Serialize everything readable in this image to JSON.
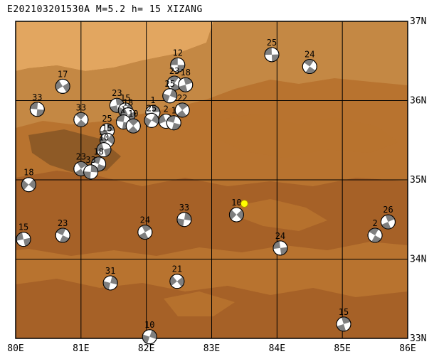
{
  "title": "E202103201530A  M=5.2  h=  15  XIZANG",
  "map": {
    "lon_range": [
      80,
      86
    ],
    "lat_range": [
      33,
      37
    ],
    "x_tick_labels": [
      "80E",
      "81E",
      "82E",
      "83E",
      "84E",
      "85E",
      "86E"
    ],
    "y_tick_labels": [
      "37N",
      "36N",
      "35N",
      "34N",
      "33N"
    ],
    "grid": true,
    "colors": {
      "frame": "#000000",
      "terrain_base": "#b8732f",
      "terrain_low": "#a66127",
      "terrain_mid": "#c48844",
      "terrain_high": "#e2a660",
      "plateau_dark": "#8e5a26",
      "beachball_dark": "#7f7f7f",
      "beachball_light": "#ffffff",
      "event_marker": "#ffff00"
    }
  },
  "event_marker": {
    "lon": 83.5,
    "lat": 34.7
  },
  "mechanisms": [
    {
      "lon": 82.48,
      "lat": 36.45,
      "label": "12"
    },
    {
      "lon": 82.43,
      "lat": 36.22,
      "label": "23"
    },
    {
      "lon": 82.6,
      "lat": 36.2,
      "label": "18"
    },
    {
      "lon": 82.36,
      "lat": 36.06,
      "label": "25"
    },
    {
      "lon": 80.72,
      "lat": 36.18,
      "label": "17"
    },
    {
      "lon": 80.33,
      "lat": 35.89,
      "label": "33"
    },
    {
      "lon": 81.0,
      "lat": 35.76,
      "label": "33"
    },
    {
      "lon": 81.55,
      "lat": 35.94,
      "label": "23"
    },
    {
      "lon": 81.68,
      "lat": 35.88,
      "label": "15"
    },
    {
      "lon": 81.72,
      "lat": 35.82,
      "label": "18"
    },
    {
      "lon": 81.65,
      "lat": 35.73,
      "label": "1"
    },
    {
      "lon": 81.8,
      "lat": 35.68,
      "label": "10"
    },
    {
      "lon": 82.1,
      "lat": 35.85,
      "label": "1"
    },
    {
      "lon": 82.08,
      "lat": 35.75,
      "label": "25"
    },
    {
      "lon": 82.3,
      "lat": 35.74,
      "label": "2"
    },
    {
      "lon": 82.42,
      "lat": 35.72,
      "label": "1"
    },
    {
      "lon": 82.55,
      "lat": 35.88,
      "label": "22"
    },
    {
      "lon": 81.4,
      "lat": 35.62,
      "label": "25"
    },
    {
      "lon": 81.4,
      "lat": 35.5,
      "label": "15"
    },
    {
      "lon": 81.35,
      "lat": 35.38,
      "label": "10"
    },
    {
      "lon": 81.27,
      "lat": 35.2,
      "label": "18"
    },
    {
      "lon": 81.0,
      "lat": 35.14,
      "label": "23"
    },
    {
      "lon": 81.15,
      "lat": 35.1,
      "label": "33"
    },
    {
      "lon": 80.2,
      "lat": 34.94,
      "label": "18"
    },
    {
      "lon": 80.12,
      "lat": 34.25,
      "label": "15"
    },
    {
      "lon": 80.72,
      "lat": 34.3,
      "label": "23"
    },
    {
      "lon": 81.98,
      "lat": 34.34,
      "label": "24"
    },
    {
      "lon": 82.58,
      "lat": 34.5,
      "label": "33"
    },
    {
      "lon": 83.38,
      "lat": 34.56,
      "label": "10"
    },
    {
      "lon": 84.05,
      "lat": 34.14,
      "label": "24"
    },
    {
      "lon": 85.5,
      "lat": 34.3,
      "label": "2"
    },
    {
      "lon": 85.7,
      "lat": 34.47,
      "label": "26"
    },
    {
      "lon": 81.45,
      "lat": 33.7,
      "label": "31"
    },
    {
      "lon": 82.47,
      "lat": 33.72,
      "label": "21"
    },
    {
      "lon": 83.92,
      "lat": 36.58,
      "label": "25"
    },
    {
      "lon": 84.5,
      "lat": 36.43,
      "label": "24"
    },
    {
      "lon": 85.02,
      "lat": 33.18,
      "label": "15"
    },
    {
      "lon": 82.05,
      "lat": 33.02,
      "label": "10"
    }
  ]
}
